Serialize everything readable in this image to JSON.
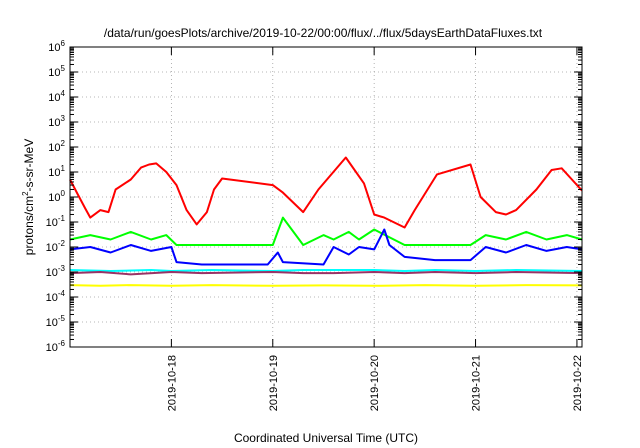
{
  "chart_data": {
    "type": "line",
    "title": "/data/run/goesPlots/archive/2019-10-22/00:00/flux/../flux/5daysEarthDataFluxes.txt",
    "xlabel": "Coordinated Universal Time (UTC)",
    "ylabel": {
      "prefix": "protons/cm",
      "sup": "2",
      "suffix": "-s-sr-MeV"
    },
    "y_scale": "log",
    "ylim": [
      1e-06,
      1000000.0
    ],
    "xlim": [
      0,
      5.05
    ],
    "grid": true,
    "legend": "none",
    "y_ticks": [
      {
        "exp": "-6"
      },
      {
        "exp": "-5"
      },
      {
        "exp": "-4"
      },
      {
        "exp": "-3"
      },
      {
        "exp": "-2"
      },
      {
        "exp": "-1"
      },
      {
        "exp": "0"
      },
      {
        "exp": "1"
      },
      {
        "exp": "2"
      },
      {
        "exp": "3"
      },
      {
        "exp": "4"
      },
      {
        "exp": "5"
      },
      {
        "exp": "6"
      }
    ],
    "x_ticks": [
      {
        "label": "2019-10-18",
        "x": 1.0
      },
      {
        "label": "2019-10-19",
        "x": 2.0
      },
      {
        "label": "2019-10-20",
        "x": 3.0
      },
      {
        "label": "2019-10-21",
        "x": 4.0
      },
      {
        "label": "2019-10-22",
        "x": 5.0
      }
    ],
    "series": [
      {
        "color": "#ffff00",
        "points": [
          [
            0,
            0.0003
          ],
          [
            0.3,
            0.00028
          ],
          [
            0.6,
            0.0003
          ],
          [
            1.0,
            0.00028
          ],
          [
            1.4,
            0.0003
          ],
          [
            2.0,
            0.00028
          ],
          [
            2.5,
            0.00029
          ],
          [
            3.0,
            0.00028
          ],
          [
            3.5,
            0.0003
          ],
          [
            4.0,
            0.00028
          ],
          [
            4.5,
            0.0003
          ],
          [
            5.05,
            0.00029
          ]
        ]
      },
      {
        "color": "#00ffff",
        "points": [
          [
            0,
            0.0012
          ],
          [
            0.4,
            0.0011
          ],
          [
            0.8,
            0.0012
          ],
          [
            1.0,
            0.0011
          ],
          [
            1.4,
            0.0012
          ],
          [
            2.0,
            0.0011
          ],
          [
            2.3,
            0.0012
          ],
          [
            2.7,
            0.0012
          ],
          [
            3.0,
            0.0012
          ],
          [
            3.3,
            0.0011
          ],
          [
            3.6,
            0.0012
          ],
          [
            4.0,
            0.0011
          ],
          [
            4.4,
            0.0012
          ],
          [
            5.05,
            0.0011
          ]
        ]
      },
      {
        "color": "#00ff00",
        "points": [
          [
            0,
            0.02
          ],
          [
            0.2,
            0.03
          ],
          [
            0.4,
            0.02
          ],
          [
            0.6,
            0.04
          ],
          [
            0.8,
            0.02
          ],
          [
            0.95,
            0.03
          ],
          [
            1.05,
            0.012
          ],
          [
            1.5,
            0.012
          ],
          [
            2.0,
            0.012
          ],
          [
            2.1,
            0.15
          ],
          [
            2.3,
            0.012
          ],
          [
            2.5,
            0.03
          ],
          [
            2.6,
            0.02
          ],
          [
            2.75,
            0.04
          ],
          [
            2.85,
            0.02
          ],
          [
            3.0,
            0.05
          ],
          [
            3.3,
            0.012
          ],
          [
            3.6,
            0.012
          ],
          [
            3.95,
            0.012
          ],
          [
            4.1,
            0.03
          ],
          [
            4.3,
            0.02
          ],
          [
            4.5,
            0.04
          ],
          [
            4.7,
            0.02
          ],
          [
            4.9,
            0.03
          ],
          [
            5.05,
            0.02
          ]
        ]
      },
      {
        "color": "#0000ff",
        "points": [
          [
            0,
            0.008
          ],
          [
            0.2,
            0.01
          ],
          [
            0.4,
            0.006
          ],
          [
            0.6,
            0.012
          ],
          [
            0.8,
            0.007
          ],
          [
            1.0,
            0.01
          ],
          [
            1.05,
            0.0025
          ],
          [
            1.3,
            0.002
          ],
          [
            1.6,
            0.002
          ],
          [
            1.95,
            0.002
          ],
          [
            2.05,
            0.006
          ],
          [
            2.1,
            0.0025
          ],
          [
            2.5,
            0.002
          ],
          [
            2.6,
            0.01
          ],
          [
            2.75,
            0.005
          ],
          [
            2.85,
            0.01
          ],
          [
            3.0,
            0.008
          ],
          [
            3.1,
            0.05
          ],
          [
            3.15,
            0.012
          ],
          [
            3.3,
            0.004
          ],
          [
            3.6,
            0.003
          ],
          [
            3.95,
            0.003
          ],
          [
            4.1,
            0.01
          ],
          [
            4.3,
            0.006
          ],
          [
            4.5,
            0.012
          ],
          [
            4.7,
            0.007
          ],
          [
            4.9,
            0.01
          ],
          [
            5.05,
            0.008
          ]
        ]
      },
      {
        "color": "#993366",
        "points": [
          [
            0,
            0.0009
          ],
          [
            0.3,
            0.001
          ],
          [
            0.6,
            0.0008
          ],
          [
            1.0,
            0.001
          ],
          [
            1.3,
            0.0009
          ],
          [
            2.0,
            0.001
          ],
          [
            2.3,
            0.0009
          ],
          [
            2.6,
            0.0009
          ],
          [
            3.0,
            0.001
          ],
          [
            3.3,
            0.0009
          ],
          [
            3.6,
            0.001
          ],
          [
            4.0,
            0.0009
          ],
          [
            4.4,
            0.001
          ],
          [
            5.05,
            0.0009
          ]
        ]
      },
      {
        "color": "#ff0000",
        "points": [
          [
            0,
            5.0
          ],
          [
            0.08,
            1.2
          ],
          [
            0.15,
            0.35
          ],
          [
            0.2,
            0.15
          ],
          [
            0.3,
            0.3
          ],
          [
            0.38,
            0.25
          ],
          [
            0.45,
            2.0
          ],
          [
            0.6,
            5.0
          ],
          [
            0.7,
            15.0
          ],
          [
            0.78,
            20.0
          ],
          [
            0.85,
            22.0
          ],
          [
            0.95,
            10.0
          ],
          [
            1.05,
            3.0
          ],
          [
            1.15,
            0.3
          ],
          [
            1.25,
            0.08
          ],
          [
            1.35,
            0.25
          ],
          [
            1.42,
            2.0
          ],
          [
            1.5,
            5.5
          ],
          [
            2.0,
            3.0
          ],
          [
            2.1,
            1.5
          ],
          [
            2.3,
            0.25
          ],
          [
            2.45,
            2.0
          ],
          [
            2.72,
            38.0
          ],
          [
            2.9,
            3.5
          ],
          [
            3.0,
            0.2
          ],
          [
            3.1,
            0.15
          ],
          [
            3.3,
            0.06
          ],
          [
            3.4,
            0.3
          ],
          [
            3.62,
            8.0
          ],
          [
            3.95,
            20.0
          ],
          [
            4.05,
            1.0
          ],
          [
            4.2,
            0.25
          ],
          [
            4.3,
            0.2
          ],
          [
            4.4,
            0.3
          ],
          [
            4.6,
            2.0
          ],
          [
            4.75,
            12.0
          ],
          [
            4.85,
            14.0
          ],
          [
            4.95,
            5.0
          ],
          [
            5.05,
            1.8
          ]
        ]
      }
    ]
  }
}
